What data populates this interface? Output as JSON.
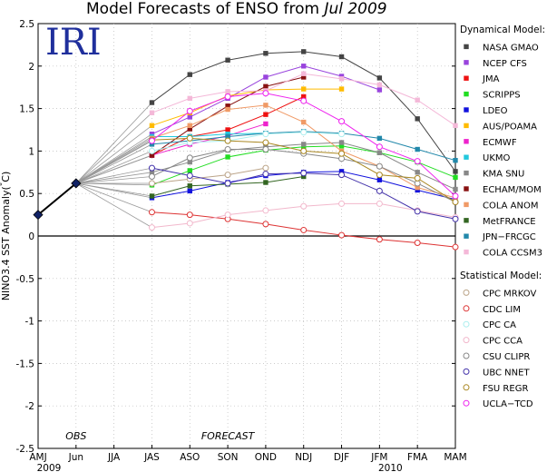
{
  "chart_data": {
    "type": "line",
    "title": "Model Forecasts of ENSO from",
    "title_date": "Jul 2009",
    "logo": "IRI",
    "ylabel": "NINO3.4 SST Anomaly(°C)",
    "ylim": [
      -2.5,
      2.5
    ],
    "yticks": [
      -2.5,
      -2,
      -1.5,
      -1,
      -0.5,
      0,
      0.5,
      1,
      1.5,
      2,
      2.5
    ],
    "ytick_labels": [
      "-2.5",
      "-2",
      "-1.5",
      "-1",
      "-0.5",
      "0",
      "0.5",
      "1",
      "1.5",
      "2",
      "2.5"
    ],
    "categories": [
      "AMJ",
      "Jun",
      "JJA",
      "JAS",
      "ASO",
      "SON",
      "OND",
      "NDJ",
      "DJF",
      "JFM",
      "FMA",
      "MAM"
    ],
    "year_labels": [
      {
        "category": "AMJ",
        "text": "2009"
      },
      {
        "category": "JFM",
        "text": "2010"
      }
    ],
    "annotations": [
      {
        "text": "OBS",
        "category": "Jun"
      },
      {
        "text": "FORECAST",
        "category": "SON"
      }
    ],
    "observed": {
      "name": "OBS",
      "values": [
        0.25,
        0.62
      ],
      "color": "#000000"
    },
    "legend_position": "right",
    "legend_groups": [
      {
        "title": "Dynamical Model:",
        "marker": "filled-square",
        "series": [
          {
            "name": "NASA GMAO",
            "color": "#444444",
            "values": [
              null,
              null,
              null,
              1.57,
              1.9,
              2.07,
              2.15,
              2.17,
              2.11,
              1.86,
              1.38,
              0.76
            ]
          },
          {
            "name": "NCEP CFS",
            "color": "#9944dd",
            "values": [
              null,
              null,
              null,
              1.2,
              1.4,
              1.62,
              1.87,
              2.0,
              1.88,
              1.72,
              null,
              null
            ]
          },
          {
            "name": "JMA",
            "color": "#ee1111",
            "values": [
              null,
              null,
              null,
              0.95,
              1.17,
              1.25,
              1.43,
              1.64,
              null,
              null,
              null,
              null
            ]
          },
          {
            "name": "SCRIPPS",
            "color": "#22dd22",
            "values": [
              null,
              null,
              null,
              0.6,
              0.77,
              0.93,
              1.01,
              1.05,
              1.06,
              0.98,
              0.87,
              0.69
            ]
          },
          {
            "name": "LDEO",
            "color": "#1111dd",
            "values": [
              null,
              null,
              null,
              0.45,
              0.53,
              0.63,
              0.71,
              0.75,
              0.76,
              0.66,
              0.54,
              0.43
            ]
          },
          {
            "name": "AUS/POAMA",
            "color": "#ffbb00",
            "values": [
              null,
              null,
              null,
              1.3,
              1.45,
              1.65,
              1.72,
              1.73,
              1.73,
              null,
              null,
              null
            ]
          },
          {
            "name": "ECMWF",
            "color": "#ee22cc",
            "values": [
              null,
              null,
              null,
              0.95,
              1.08,
              1.18,
              1.32,
              null,
              null,
              null,
              null,
              null
            ]
          },
          {
            "name": "UKMO",
            "color": "#22c8dd",
            "values": [
              null,
              null,
              null,
              1.17,
              1.17,
              1.2,
              1.21,
              null,
              null,
              null,
              null,
              null
            ]
          },
          {
            "name": "KMA SNU",
            "color": "#888888",
            "values": [
              null,
              null,
              null,
              0.75,
              0.87,
              1.01,
              1.05,
              1.08,
              1.1,
              0.98,
              0.75,
              0.55
            ]
          },
          {
            "name": "ECHAM/MOM",
            "color": "#881111",
            "values": [
              null,
              null,
              null,
              0.95,
              1.26,
              1.53,
              1.76,
              1.87,
              null,
              null,
              null,
              null
            ]
          },
          {
            "name": "COLA ANOM",
            "color": "#f09a66",
            "values": [
              null,
              null,
              null,
              1.15,
              1.3,
              1.49,
              1.54,
              1.34,
              1.0,
              0.82,
              0.57,
              0.45
            ]
          },
          {
            "name": "MetFRANCE",
            "color": "#336622",
            "values": [
              null,
              null,
              null,
              0.47,
              0.59,
              0.61,
              0.63,
              0.7,
              null,
              null,
              null,
              null
            ]
          },
          {
            "name": "JPN−FRCGC",
            "color": "#2288aa",
            "values": [
              null,
              null,
              null,
              1.08,
              1.12,
              1.17,
              1.21,
              1.23,
              1.21,
              1.15,
              1.02,
              0.89
            ]
          },
          {
            "name": "COLA CCSM3",
            "color": "#f4b8d8",
            "values": [
              null,
              null,
              null,
              1.45,
              1.62,
              1.7,
              1.71,
              1.91,
              1.85,
              1.78,
              1.6,
              1.3
            ]
          }
        ]
      },
      {
        "title": "Statistical Model:",
        "marker": "open-circle",
        "series": [
          {
            "name": "CPC MRKOV",
            "color": "#bba488",
            "values": [
              null,
              null,
              null,
              0.62,
              0.67,
              0.72,
              0.8,
              null,
              null,
              null,
              null,
              null
            ]
          },
          {
            "name": "CDC LIM",
            "color": "#dd3333",
            "values": [
              null,
              null,
              null,
              0.28,
              0.25,
              0.2,
              0.14,
              0.07,
              0.01,
              -0.04,
              -0.08,
              -0.13
            ]
          },
          {
            "name": "CPC CA",
            "color": "#aaeeee",
            "values": [
              null,
              null,
              null,
              1.0,
              1.1,
              1.12,
              1.2,
              1.22,
              1.2,
              null,
              null,
              null
            ]
          },
          {
            "name": "CPC CCA",
            "color": "#f2b8cc",
            "values": [
              null,
              null,
              null,
              0.1,
              0.15,
              0.25,
              0.3,
              0.35,
              0.38,
              0.38,
              0.3,
              0.22
            ]
          },
          {
            "name": "CSU CLIPR",
            "color": "#888888",
            "values": [
              null,
              null,
              null,
              0.7,
              0.92,
              1.02,
              1.02,
              0.97,
              0.91,
              0.82,
              0.62,
              0.4
            ]
          },
          {
            "name": "UBC NNET",
            "color": "#4433aa",
            "values": [
              null,
              null,
              null,
              0.8,
              0.71,
              0.62,
              0.73,
              0.74,
              0.72,
              0.53,
              0.29,
              0.2
            ]
          },
          {
            "name": "FSU REGR",
            "color": "#aa8822",
            "values": [
              null,
              null,
              null,
              1.13,
              1.15,
              1.12,
              1.1,
              1.0,
              0.97,
              0.72,
              0.68,
              0.4
            ]
          },
          {
            "name": "UCLA−TCD",
            "color": "#ee22ee",
            "values": [
              null,
              null,
              null,
              1.12,
              1.47,
              1.64,
              1.68,
              1.59,
              1.35,
              1.05,
              0.88,
              0.47
            ]
          }
        ]
      }
    ]
  }
}
